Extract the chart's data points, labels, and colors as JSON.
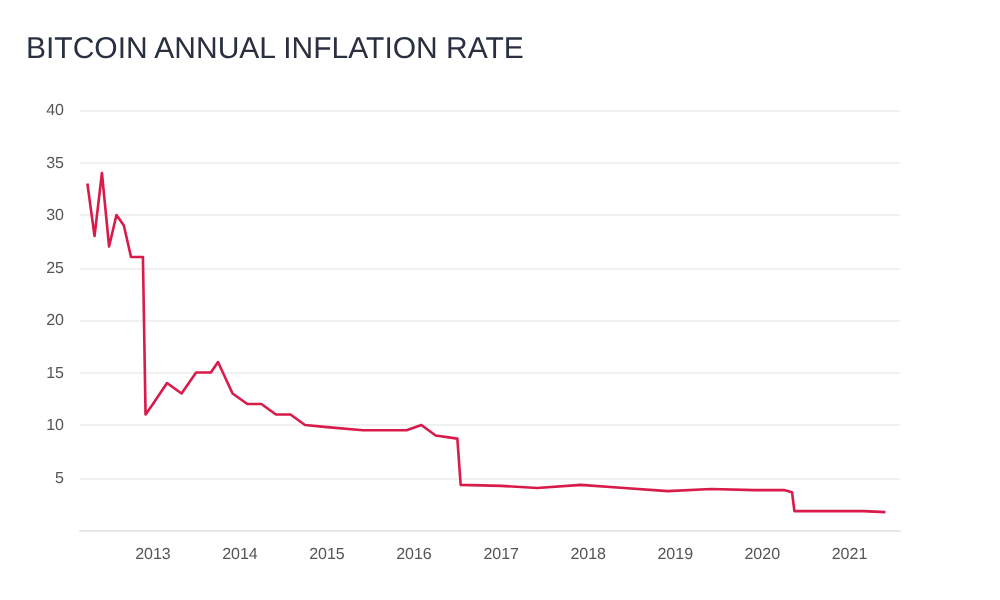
{
  "chart_data": {
    "type": "line",
    "title": "BITCOIN ANNUAL INFLATION RATE",
    "x": [
      "2012-04",
      "2012-05",
      "2012-06",
      "2012-07",
      "2012-08",
      "2012-09",
      "2012-10",
      "2012-11-20",
      "2012-12",
      "2013-01",
      "2013-03",
      "2013-05",
      "2013-07",
      "2013-09",
      "2013-10",
      "2013-12",
      "2014-02",
      "2014-04",
      "2014-06",
      "2014-08",
      "2014-10",
      "2015-01",
      "2015-06",
      "2015-12",
      "2016-02",
      "2016-04",
      "2016-07-01",
      "2016-07-15",
      "2017-01",
      "2017-06",
      "2017-12",
      "2018-06",
      "2018-12",
      "2019-06",
      "2019-12",
      "2020-04",
      "2020-05-05",
      "2020-05-15",
      "2020-10",
      "2021-03",
      "2021-06"
    ],
    "series": [
      {
        "color": "#d81b4a",
        "values": [
          33,
          28,
          34,
          27,
          30,
          29,
          26,
          26,
          11,
          12,
          14,
          13,
          15,
          15,
          16,
          13,
          12,
          12,
          11,
          11,
          10,
          9.8,
          9.5,
          9.5,
          10,
          9,
          8.7,
          4.3,
          4.2,
          4.0,
          4.3,
          4.0,
          3.7,
          3.9,
          3.8,
          3.8,
          3.6,
          1.8,
          1.8,
          1.8,
          1.7
        ]
      }
    ],
    "xlim": [
      "2012-03",
      "2021-08"
    ],
    "xticks": [
      "2013",
      "2014",
      "2015",
      "2016",
      "2017",
      "2018",
      "2019",
      "2020",
      "2021"
    ],
    "ylim": [
      0,
      40
    ],
    "yticks": [
      5,
      10,
      15,
      20,
      25,
      30,
      35,
      40
    ],
    "grid": "y",
    "marker": "none",
    "line_style": "solid"
  }
}
